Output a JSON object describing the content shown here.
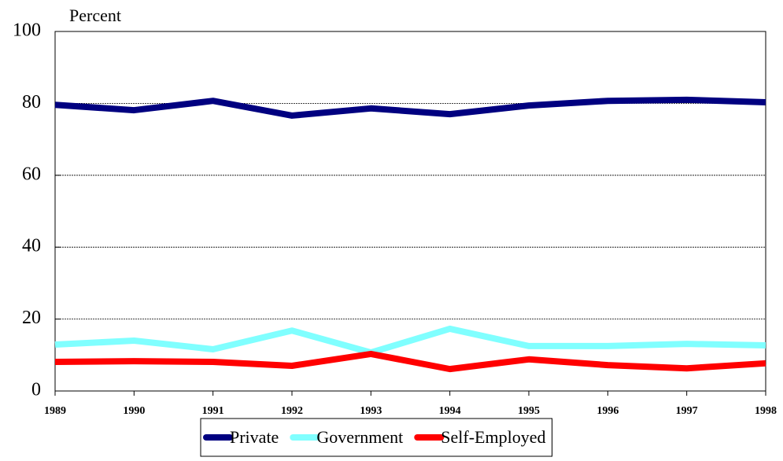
{
  "chart_data": {
    "type": "line",
    "y_label": "Percent",
    "x": [
      "1989",
      "1990",
      "1991",
      "1992",
      "1993",
      "1994",
      "1995",
      "1996",
      "1997",
      "1998"
    ],
    "series": [
      {
        "name": "Private",
        "color": "#000080",
        "values": [
          79.6,
          78.1,
          80.7,
          76.6,
          78.6,
          77.0,
          79.4,
          80.7,
          81.0,
          80.3
        ]
      },
      {
        "name": "Government",
        "color": "#80ffff",
        "values": [
          12.9,
          14.0,
          11.6,
          16.8,
          10.7,
          17.3,
          12.5,
          12.5,
          13.1,
          12.7
        ]
      },
      {
        "name": "Self-Employed",
        "color": "#ff0000",
        "values": [
          8.1,
          8.3,
          8.1,
          7.0,
          10.3,
          6.1,
          8.8,
          7.2,
          6.3,
          7.7
        ]
      }
    ],
    "ylim": [
      0,
      100
    ],
    "yticks": [
      0,
      20,
      40,
      60,
      80,
      100
    ],
    "grid": true,
    "legend": "bottom"
  }
}
